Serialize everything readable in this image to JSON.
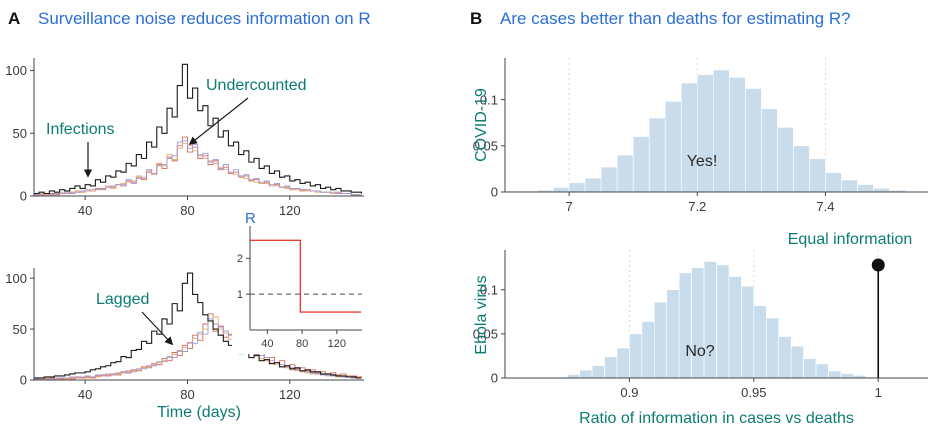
{
  "figure": {
    "panelA": {
      "label": "A",
      "title": "Surveillance noise reduces information on R"
    },
    "panelB": {
      "label": "B",
      "title": "Are cases better than deaths for estimating R?"
    },
    "colors": {
      "title_blue": "#2b6fd6",
      "teal": "#0b7c72",
      "axis": "#444444",
      "tick": "#3a3a3a",
      "grid": "#d9d9d9",
      "dash": "#4a4a4a",
      "hist_fill": "#c8dcec",
      "hist_edge": "#ffffff",
      "stem_black": "#111111",
      "arrow_black": "#1a1a1a"
    }
  },
  "chart_data": [
    {
      "id": "epidemic-top",
      "type": "line",
      "line_style": "step",
      "xlabel": "",
      "ylabel": "",
      "annotations": [
        {
          "text": "Infections"
        },
        {
          "text": "Undercounted"
        }
      ],
      "xlim": [
        20,
        149
      ],
      "ylim": [
        0,
        110
      ],
      "xticks": [
        40,
        80,
        120
      ],
      "yticks": [
        0,
        50,
        100
      ],
      "x_start": 20,
      "x_step": 2,
      "series": [
        {
          "name": "undercounted-1",
          "color": "#dc6a52",
          "width": 0.9,
          "values": [
            1,
            1,
            1,
            2,
            1,
            2,
            2,
            3,
            3,
            3,
            4,
            4,
            6,
            5,
            7,
            7,
            9,
            8,
            12,
            11,
            15,
            13,
            19,
            18,
            25,
            22,
            31,
            28,
            40,
            47,
            35,
            39,
            30,
            32,
            25,
            28,
            21,
            23,
            18,
            19,
            15,
            16,
            12,
            13,
            10,
            11,
            8,
            9,
            7,
            7,
            5,
            6,
            4,
            5,
            4,
            4,
            3,
            3,
            2,
            3,
            2,
            2,
            1,
            1,
            1
          ]
        },
        {
          "name": "undercounted-2",
          "color": "#eda76a",
          "width": 0.9,
          "values": [
            1,
            2,
            1,
            1,
            2,
            3,
            2,
            2,
            4,
            3,
            5,
            4,
            5,
            6,
            8,
            6,
            9,
            10,
            11,
            12,
            16,
            14,
            20,
            17,
            26,
            24,
            33,
            29,
            38,
            42,
            40,
            36,
            33,
            30,
            28,
            26,
            23,
            21,
            19,
            17,
            16,
            14,
            13,
            11,
            10,
            10,
            8,
            8,
            7,
            6,
            5,
            5,
            5,
            4,
            4,
            3,
            3,
            3,
            2,
            2,
            2,
            2,
            1,
            1,
            1
          ]
        },
        {
          "name": "undercounted-3",
          "color": "#9e97d8",
          "width": 0.9,
          "values": [
            1,
            1,
            2,
            1,
            2,
            2,
            3,
            2,
            3,
            4,
            4,
            5,
            5,
            6,
            7,
            8,
            9,
            9,
            13,
            10,
            14,
            15,
            21,
            18,
            24,
            25,
            30,
            32,
            43,
            44,
            38,
            41,
            32,
            34,
            27,
            29,
            22,
            25,
            19,
            21,
            16,
            17,
            13,
            14,
            11,
            12,
            9,
            10,
            7,
            8,
            6,
            6,
            5,
            5,
            4,
            4,
            3,
            3,
            3,
            2,
            2,
            2,
            1,
            1,
            1
          ]
        },
        {
          "name": "infections",
          "color": "#1a1a1a",
          "width": 1.1,
          "values": [
            2,
            3,
            2,
            4,
            3,
            5,
            4,
            6,
            8,
            6,
            9,
            8,
            13,
            11,
            16,
            15,
            20,
            19,
            26,
            24,
            33,
            30,
            43,
            39,
            55,
            50,
            70,
            63,
            88,
            105,
            78,
            86,
            68,
            72,
            56,
            62,
            47,
            52,
            40,
            43,
            33,
            36,
            27,
            30,
            22,
            24,
            18,
            20,
            15,
            16,
            12,
            13,
            10,
            11,
            8,
            9,
            6,
            7,
            5,
            6,
            4,
            4,
            3,
            3,
            2
          ]
        }
      ]
    },
    {
      "id": "epidemic-bottom",
      "type": "line",
      "line_style": "step",
      "xlabel": "Time (days)",
      "ylabel": "",
      "annotations": [
        {
          "text": "Lagged"
        }
      ],
      "xlim": [
        20,
        149
      ],
      "ylim": [
        0,
        110
      ],
      "xticks": [
        40,
        80,
        120
      ],
      "yticks": [
        0,
        50,
        100
      ],
      "x_start": 20,
      "x_step": 2,
      "series": [
        {
          "name": "lagged-1",
          "color": "#dc6a52",
          "width": 0.9,
          "values": [
            1,
            1,
            1,
            2,
            1,
            1,
            2,
            1,
            3,
            2,
            3,
            2,
            4,
            5,
            4,
            6,
            5,
            8,
            7,
            10,
            9,
            13,
            12,
            16,
            15,
            21,
            19,
            27,
            24,
            34,
            31,
            44,
            39,
            55,
            65,
            48,
            53,
            42,
            45,
            35,
            38,
            29,
            32,
            25,
            27,
            20,
            22,
            17,
            19,
            14,
            15,
            11,
            12,
            9,
            10,
            7,
            8,
            6,
            7,
            5,
            6,
            4,
            4,
            3,
            4
          ]
        },
        {
          "name": "lagged-2",
          "color": "#eda76a",
          "width": 0.9,
          "values": [
            1,
            1,
            2,
            1,
            1,
            2,
            1,
            2,
            2,
            3,
            2,
            3,
            3,
            4,
            5,
            5,
            6,
            7,
            8,
            9,
            10,
            12,
            13,
            15,
            17,
            19,
            22,
            25,
            28,
            32,
            36,
            41,
            45,
            50,
            58,
            62,
            50,
            46,
            40,
            37,
            32,
            30,
            26,
            24,
            21,
            19,
            17,
            15,
            13,
            12,
            10,
            9,
            8,
            7,
            6,
            6,
            5,
            4,
            4,
            3,
            3,
            3,
            2,
            2,
            2
          ]
        },
        {
          "name": "lagged-3",
          "color": "#9e97d8",
          "width": 0.9,
          "values": [
            1,
            2,
            1,
            1,
            2,
            2,
            2,
            3,
            2,
            3,
            4,
            3,
            5,
            4,
            6,
            5,
            7,
            7,
            9,
            8,
            11,
            11,
            14,
            14,
            18,
            18,
            23,
            22,
            29,
            28,
            37,
            36,
            47,
            45,
            60,
            55,
            52,
            48,
            44,
            40,
            36,
            33,
            30,
            27,
            24,
            22,
            19,
            17,
            15,
            13,
            12,
            10,
            9,
            8,
            7,
            6,
            5,
            5,
            4,
            4,
            3,
            3,
            2,
            2,
            2
          ]
        },
        {
          "name": "infections",
          "color": "#1a1a1a",
          "width": 1.1,
          "values": [
            2,
            2,
            3,
            3,
            4,
            4,
            5,
            6,
            7,
            7,
            8,
            10,
            11,
            13,
            14,
            17,
            18,
            23,
            22,
            29,
            30,
            38,
            36,
            48,
            45,
            60,
            55,
            75,
            68,
            95,
            105,
            84,
            76,
            64,
            58,
            50,
            44,
            38,
            34,
            30,
            26,
            28,
            22,
            24,
            19,
            20,
            16,
            17,
            13,
            14,
            11,
            12,
            9,
            10,
            8,
            8,
            6,
            6,
            5,
            4,
            4,
            3,
            3,
            2,
            2
          ]
        }
      ]
    },
    {
      "id": "r-inset",
      "type": "line",
      "line_style": "step",
      "xlabel": "",
      "ylabel": "R",
      "xlim": [
        20,
        149
      ],
      "ylim": [
        0,
        2.9
      ],
      "xticks": [
        40,
        80,
        120
      ],
      "yticks": [
        1,
        2
      ],
      "reference_line": {
        "y": 1,
        "style": "dashed",
        "color": "#4a4a4a"
      },
      "series": [
        {
          "name": "true-R",
          "color": "#e54237",
          "width": 1.4,
          "x": [
            20,
            78,
            78,
            148
          ],
          "y": [
            2.5,
            2.5,
            0.5,
            0.5
          ]
        }
      ]
    },
    {
      "id": "covid-hist",
      "type": "bar",
      "ylabel": "COVID-19",
      "xlabel": "",
      "annotations": [
        {
          "text": "Yes!"
        }
      ],
      "xlim": [
        6.9,
        7.56
      ],
      "ylim": [
        0,
        0.145
      ],
      "xticks": [
        7,
        7.2,
        7.4
      ],
      "xtick_labels": [
        "7",
        "7.2",
        "7.4"
      ],
      "yticks": [
        0,
        0.05,
        0.1
      ],
      "ytick_labels": [
        "0",
        "0.05",
        "0.1"
      ],
      "bin_start": 6.9,
      "bin_width": 0.025,
      "values": [
        0.001,
        0.001,
        0.002,
        0.005,
        0.01,
        0.015,
        0.027,
        0.04,
        0.06,
        0.08,
        0.098,
        0.118,
        0.127,
        0.132,
        0.124,
        0.112,
        0.09,
        0.07,
        0.05,
        0.036,
        0.021,
        0.013,
        0.008,
        0.004,
        0.002
      ]
    },
    {
      "id": "ebola-hist",
      "type": "bar",
      "ylabel": "Ebola virus",
      "xlabel": "Ratio of information in cases vs deaths",
      "annotations": [
        {
          "text": "No?"
        },
        {
          "text": "Equal information"
        }
      ],
      "xlim": [
        0.85,
        1.02
      ],
      "ylim": [
        0,
        0.145
      ],
      "xticks": [
        0.9,
        0.95,
        1
      ],
      "xtick_labels": [
        "0.9",
        "0.95",
        "1"
      ],
      "yticks": [
        0,
        0.05,
        0.1
      ],
      "ytick_labels": [
        "0",
        "0.05",
        "0.1"
      ],
      "bin_start": 0.875,
      "bin_width": 0.005,
      "values": [
        0.004,
        0.009,
        0.014,
        0.024,
        0.034,
        0.05,
        0.064,
        0.086,
        0.1,
        0.119,
        0.125,
        0.132,
        0.128,
        0.115,
        0.104,
        0.082,
        0.068,
        0.047,
        0.036,
        0.022,
        0.016,
        0.008,
        0.005,
        0.003,
        0.001
      ],
      "stem": {
        "x": 1,
        "height": 0.128
      }
    }
  ]
}
